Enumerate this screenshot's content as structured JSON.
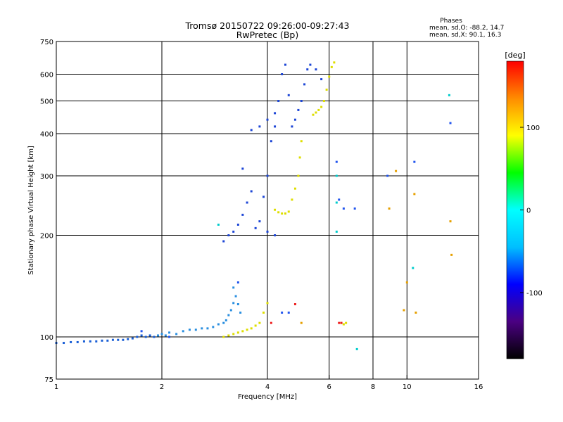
{
  "chart_data": {
    "type": "scatter",
    "title": "Tromsø 20150722 09:26:00-09:27:43",
    "subtitle": "RwPretec (Bp)",
    "xlabel": "Frequency [MHz]",
    "ylabel": "Stationary phase Virtual Height [km]",
    "x_scale": "log",
    "y_scale": "log",
    "xlim": [
      1,
      16
    ],
    "ylim": [
      75,
      750
    ],
    "x_ticks": [
      1,
      2,
      4,
      6,
      8,
      10,
      16
    ],
    "x_tick_labels": [
      "1",
      "2",
      "4",
      "6",
      "8",
      "10",
      "16"
    ],
    "x_grid": [
      2,
      4,
      6,
      8,
      10
    ],
    "y_ticks": [
      75,
      100,
      200,
      300,
      400,
      500,
      600,
      750
    ],
    "y_tick_labels": [
      "75",
      "100",
      "200",
      "300",
      "400",
      "500",
      "600",
      "750"
    ],
    "y_grid": [
      100,
      200,
      300,
      400,
      500,
      600
    ],
    "grid": true,
    "phase_stats": {
      "title": "Phases",
      "o_line": "mean, sd,O: -88.2, 14.7",
      "x_line": "mean, sd,X:  90.1, 16.3"
    },
    "colorbar": {
      "label": "[deg]",
      "range": [
        -180,
        180
      ],
      "ticks": [
        100,
        0,
        -100
      ],
      "tick_labels": [
        "100",
        "0",
        "-100"
      ],
      "stops": [
        "#000000",
        "#4b0082",
        "#0000ff",
        "#00bfff",
        "#00ffff",
        "#00ff00",
        "#ffff00",
        "#ff8c00",
        "#ff0000"
      ]
    },
    "series": [
      {
        "color": "#1a5fd6",
        "points": [
          [
            1.0,
            96
          ],
          [
            1.05,
            96
          ],
          [
            1.1,
            96.5
          ],
          [
            1.15,
            96.5
          ],
          [
            1.2,
            97
          ],
          [
            1.25,
            97
          ],
          [
            1.3,
            97
          ],
          [
            1.35,
            97.5
          ],
          [
            1.4,
            97.5
          ],
          [
            1.45,
            98
          ],
          [
            1.5,
            98
          ],
          [
            1.55,
            98
          ],
          [
            1.6,
            98.5
          ],
          [
            1.65,
            99
          ],
          [
            1.7,
            100
          ],
          [
            1.75,
            101
          ],
          [
            1.8,
            100
          ],
          [
            1.85,
            101
          ],
          [
            1.9,
            100
          ]
        ]
      },
      {
        "color": "#2a8fe0",
        "points": [
          [
            1.95,
            101
          ],
          [
            2.0,
            102
          ],
          [
            2.05,
            101
          ],
          [
            2.1,
            103
          ],
          [
            2.2,
            102
          ],
          [
            2.3,
            104
          ],
          [
            2.4,
            105
          ],
          [
            2.5,
            105
          ],
          [
            2.6,
            106
          ],
          [
            2.7,
            106
          ],
          [
            2.8,
            107
          ],
          [
            2.9,
            109
          ],
          [
            3.0,
            110
          ],
          [
            3.05,
            112
          ],
          [
            3.1,
            116
          ],
          [
            3.15,
            120
          ],
          [
            3.2,
            126
          ],
          [
            3.25,
            132
          ],
          [
            3.3,
            125
          ],
          [
            3.35,
            118
          ],
          [
            3.2,
            140
          ]
        ]
      },
      {
        "color": "#dede00",
        "points": [
          [
            3.0,
            100
          ],
          [
            3.1,
            101
          ],
          [
            3.2,
            102
          ],
          [
            3.3,
            103
          ],
          [
            3.4,
            104
          ],
          [
            3.5,
            105
          ],
          [
            3.6,
            106
          ],
          [
            3.7,
            108
          ],
          [
            3.8,
            110
          ],
          [
            3.9,
            118
          ],
          [
            4.0,
            126
          ],
          [
            4.7,
            255
          ],
          [
            4.8,
            275
          ],
          [
            4.9,
            300
          ],
          [
            4.95,
            340
          ],
          [
            5.0,
            380
          ],
          [
            4.6,
            235
          ],
          [
            4.5,
            232
          ],
          [
            4.4,
            232
          ],
          [
            4.3,
            234
          ],
          [
            4.2,
            238
          ],
          [
            5.4,
            455
          ],
          [
            5.5,
            462
          ],
          [
            5.6,
            470
          ],
          [
            5.7,
            480
          ],
          [
            5.8,
            500
          ],
          [
            5.9,
            540
          ],
          [
            6.0,
            590
          ],
          [
            6.1,
            630
          ],
          [
            6.2,
            650
          ],
          [
            6.5,
            110
          ],
          [
            6.6,
            109
          ],
          [
            6.7,
            110
          ]
        ]
      },
      {
        "color": "#1d46d6",
        "points": [
          [
            3.0,
            192
          ],
          [
            3.1,
            200
          ],
          [
            3.2,
            205
          ],
          [
            3.3,
            215
          ],
          [
            3.4,
            230
          ],
          [
            3.5,
            250
          ],
          [
            3.6,
            270
          ],
          [
            3.7,
            210
          ],
          [
            3.8,
            220
          ],
          [
            3.9,
            260
          ],
          [
            4.0,
            300
          ],
          [
            4.1,
            380
          ],
          [
            4.2,
            420
          ],
          [
            4.3,
            500
          ],
          [
            4.4,
            600
          ],
          [
            4.5,
            640
          ],
          [
            4.6,
            520
          ],
          [
            4.7,
            420
          ],
          [
            4.8,
            440
          ],
          [
            4.9,
            470
          ],
          [
            5.0,
            500
          ],
          [
            5.1,
            560
          ],
          [
            5.2,
            620
          ],
          [
            5.3,
            640
          ],
          [
            5.5,
            620
          ],
          [
            5.7,
            580
          ],
          [
            3.6,
            410
          ],
          [
            3.8,
            420
          ],
          [
            4.0,
            440
          ],
          [
            4.2,
            460
          ],
          [
            3.4,
            315
          ],
          [
            4.0,
            205
          ],
          [
            4.2,
            200
          ]
        ]
      },
      {
        "color": "#2255ee",
        "points": [
          [
            1.75,
            104
          ],
          [
            2.1,
            100
          ],
          [
            3.3,
            145
          ],
          [
            4.4,
            118
          ],
          [
            4.6,
            118
          ],
          [
            6.3,
            330
          ],
          [
            6.4,
            255
          ],
          [
            6.6,
            240
          ],
          [
            7.1,
            240
          ],
          [
            8.8,
            300
          ],
          [
            10.5,
            330
          ],
          [
            13.3,
            430
          ]
        ]
      },
      {
        "color": "#00cccc",
        "points": [
          [
            2.9,
            215
          ],
          [
            6.3,
            205
          ],
          [
            6.3,
            250
          ],
          [
            6.3,
            300
          ],
          [
            7.2,
            92
          ],
          [
            13.2,
            520
          ],
          [
            10.4,
            160
          ]
        ]
      },
      {
        "color": "#e6a000",
        "points": [
          [
            10.0,
            145
          ],
          [
            9.8,
            120
          ],
          [
            10.6,
            118
          ],
          [
            13.3,
            220
          ],
          [
            13.4,
            175
          ],
          [
            8.9,
            240
          ],
          [
            9.3,
            310
          ],
          [
            10.5,
            265
          ],
          [
            5.0,
            110
          ]
        ]
      },
      {
        "color": "#ee2222",
        "points": [
          [
            4.1,
            110
          ],
          [
            6.4,
            110
          ],
          [
            6.5,
            110
          ],
          [
            4.8,
            125
          ]
        ]
      }
    ]
  }
}
